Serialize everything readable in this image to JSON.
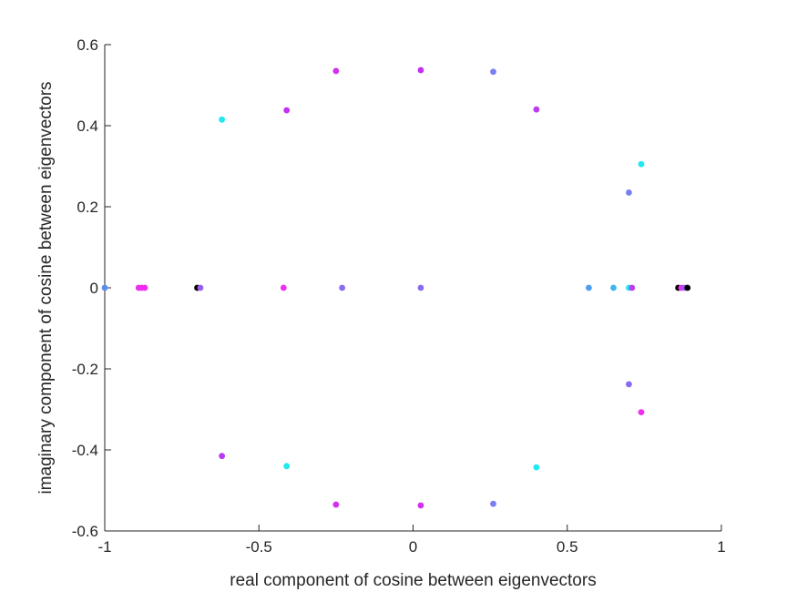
{
  "chart_data": {
    "type": "scatter",
    "title": "",
    "xlabel": "real component of cosine between eigenvectors",
    "ylabel": "imaginary component of cosine between eigenvectors",
    "xlim": [
      -1,
      1
    ],
    "ylim": [
      -0.6,
      0.6
    ],
    "xticks": [
      -1,
      -0.5,
      0,
      0.5,
      1
    ],
    "xtick_labels": [
      "-1",
      "-0.5",
      "0",
      "0.5",
      "1"
    ],
    "yticks": [
      -0.6,
      -0.4,
      -0.2,
      0,
      0.2,
      0.4,
      0.6
    ],
    "ytick_labels": [
      "-0.6",
      "-0.4",
      "-0.2",
      "0",
      "0.2",
      "0.4",
      "0.6"
    ],
    "grid": false,
    "legend": "none",
    "points": [
      {
        "x": -1.0,
        "y": 0.0,
        "color": "#5b8def"
      },
      {
        "x": -0.89,
        "y": 0.0,
        "color": "#ee2ef0"
      },
      {
        "x": -0.88,
        "y": 0.0,
        "color": "#ee2ef0"
      },
      {
        "x": -0.87,
        "y": 0.0,
        "color": "#ee2ef0"
      },
      {
        "x": -0.7,
        "y": 0.0,
        "color": "#000000"
      },
      {
        "x": -0.69,
        "y": 0.0,
        "color": "#9a5cf0"
      },
      {
        "x": -0.62,
        "y": 0.415,
        "color": "#22e8f0"
      },
      {
        "x": -0.62,
        "y": -0.415,
        "color": "#b83df0"
      },
      {
        "x": -0.42,
        "y": 0.0,
        "color": "#ee2ef0"
      },
      {
        "x": -0.41,
        "y": 0.438,
        "color": "#c42ff0"
      },
      {
        "x": -0.41,
        "y": -0.44,
        "color": "#22e8f0"
      },
      {
        "x": -0.25,
        "y": 0.535,
        "color": "#d42ef0"
      },
      {
        "x": -0.25,
        "y": -0.535,
        "color": "#d42ef0"
      },
      {
        "x": -0.23,
        "y": 0.0,
        "color": "#8a6af0"
      },
      {
        "x": 0.025,
        "y": 0.537,
        "color": "#c42ff0"
      },
      {
        "x": 0.025,
        "y": -0.537,
        "color": "#d42ef0"
      },
      {
        "x": 0.025,
        "y": 0.0,
        "color": "#8a6af0"
      },
      {
        "x": 0.26,
        "y": 0.533,
        "color": "#7a80f0"
      },
      {
        "x": 0.26,
        "y": -0.533,
        "color": "#7a80f0"
      },
      {
        "x": 0.4,
        "y": 0.44,
        "color": "#b83df0"
      },
      {
        "x": 0.4,
        "y": -0.443,
        "color": "#22e8f0"
      },
      {
        "x": 0.57,
        "y": 0.0,
        "color": "#4f9df0"
      },
      {
        "x": 0.65,
        "y": 0.0,
        "color": "#3fb5f0"
      },
      {
        "x": 0.7,
        "y": 0.0,
        "color": "#22e8f0"
      },
      {
        "x": 0.71,
        "y": 0.0,
        "color": "#b83df0"
      },
      {
        "x": 0.7,
        "y": 0.235,
        "color": "#7a80f0"
      },
      {
        "x": 0.7,
        "y": -0.238,
        "color": "#8a6af0"
      },
      {
        "x": 0.74,
        "y": 0.305,
        "color": "#22e8f0"
      },
      {
        "x": 0.74,
        "y": -0.307,
        "color": "#ee2ef0"
      },
      {
        "x": 0.86,
        "y": 0.0,
        "color": "#000000"
      },
      {
        "x": 0.87,
        "y": 0.0,
        "color": "#ee2ef0"
      },
      {
        "x": 0.88,
        "y": 0.0,
        "color": "#9a5cf0"
      },
      {
        "x": 0.89,
        "y": 0.0,
        "color": "#000000"
      }
    ]
  }
}
